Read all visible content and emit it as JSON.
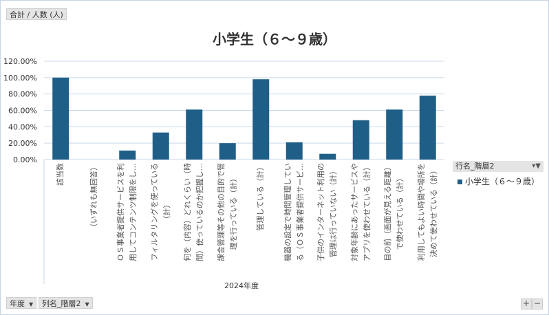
{
  "field_buttons": {
    "values": "合計 / 人数 (人)",
    "axis1": "年度",
    "axis2": "列名_階層2",
    "legend": "行名_階層2"
  },
  "colors": {
    "bar": "#1f5f87",
    "grid": "#c9d9ea"
  },
  "chart_data": {
    "type": "bar",
    "title": "小学生（６～９歳）",
    "xlabel": "2024年度",
    "ylabel": "",
    "ylim": [
      0,
      120
    ],
    "yticks": [
      "0.00%",
      "20.00%",
      "40.00%",
      "60.00%",
      "80.00%",
      "100.00%",
      "120.00%"
    ],
    "grid": true,
    "legend_position": "right",
    "categories": [
      "該当数",
      "（いずれも無回答）",
      "ＯＳ事業者提供サービスを利\n用してコンテンツ制限をし…",
      "フィルタリングを使っている\n（計）",
      "何を（内容）どれくらい（時\n間）使っているのか把握し…",
      "課金管理等その他の目的で管\n理を行っている（計）",
      "管理している（計）",
      "機器の設定で時間管理してい\nる（ＯＳ事業者提供サービ…",
      "子供のインターネット利用の\n管理は行っていない（計）",
      "対象年齢にあったサービスや\nアプリを使わせている（計）",
      "目の前（画面が見える距離）\nで使わせている（計）",
      "利用してもよい時間や場所を\n決めて使わせている（計）"
    ],
    "series": [
      {
        "name": "小学生（６～９歳）",
        "values": [
          100,
          0,
          11,
          33,
          61,
          20,
          98,
          21,
          7,
          48,
          61,
          78
        ]
      }
    ]
  },
  "zoom": {
    "plus": "+",
    "minus": "−"
  }
}
